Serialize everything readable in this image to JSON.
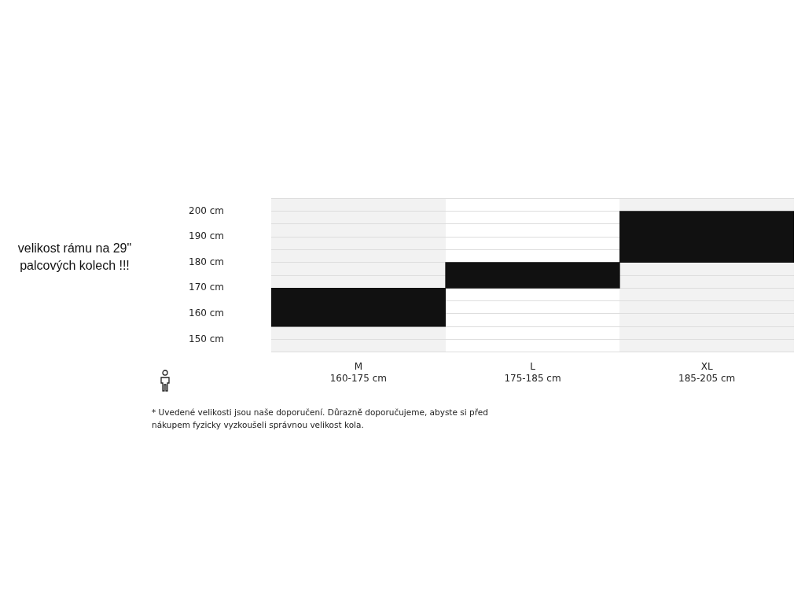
{
  "chart_data": {
    "type": "bar",
    "categories": [
      "M\n160-175 cm",
      "L\n175-185 cm",
      "XL\n185-205 cm"
    ],
    "base": [
      155,
      170,
      180
    ],
    "values": [
      15,
      10,
      20
    ],
    "color": "#111111",
    "ylim": [
      145,
      205
    ],
    "yticks": [
      {
        "value": 145,
        "label": null
      },
      {
        "value": 150,
        "label": "150 cm"
      },
      {
        "value": 155,
        "label": null
      },
      {
        "value": 160,
        "label": "160 cm"
      },
      {
        "value": 165,
        "label": null
      },
      {
        "value": 170,
        "label": "170 cm"
      },
      {
        "value": 175,
        "label": null
      },
      {
        "value": 180,
        "label": "180 cm"
      },
      {
        "value": 185,
        "label": null
      },
      {
        "value": 190,
        "label": "190 cm"
      },
      {
        "value": 195,
        "label": null
      },
      {
        "value": 200,
        "label": "200 cm"
      },
      {
        "value": 205,
        "label": null
      }
    ],
    "grid": "y",
    "legend": false,
    "annotations": [
      "velikost rámu na 29\" palcových kolech !!!",
      "* Uvedené velikosti jsou naše doporučení. Důrazně doporučujeme, abyste si před nákupem fyzicky vyzkoušeli správnou velikost kola."
    ]
  }
}
